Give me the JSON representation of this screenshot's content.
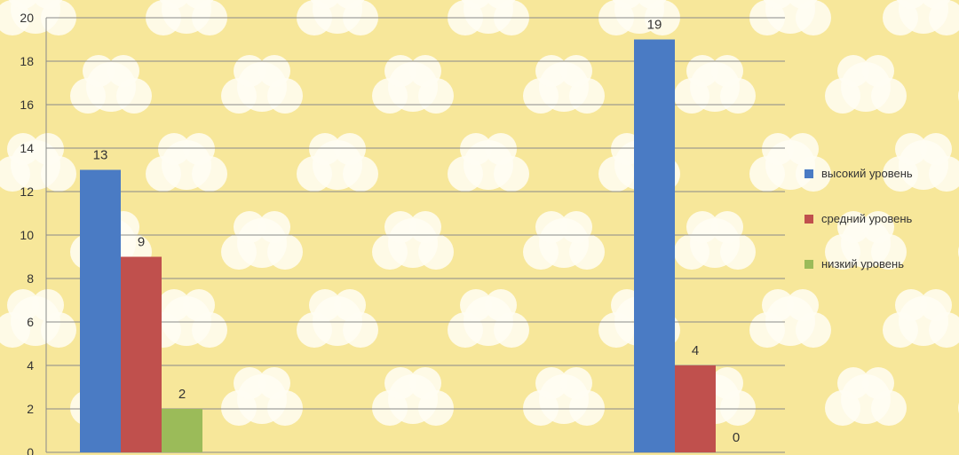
{
  "chart_data": {
    "type": "bar",
    "title": "",
    "xlabel": "",
    "ylabel": "",
    "categories": [
      "",
      ""
    ],
    "ylim": [
      0,
      20
    ],
    "yticks": [
      0,
      2,
      4,
      6,
      8,
      10,
      12,
      14,
      16,
      18,
      20
    ],
    "grid": true,
    "legend_position": "right",
    "series": [
      {
        "name": "высокий уровень",
        "color": "#4a7bc4",
        "values": [
          13,
          19
        ]
      },
      {
        "name": "средний уровень",
        "color": "#c0504d",
        "values": [
          9,
          4
        ]
      },
      {
        "name": "низкий уровень",
        "color": "#9bbb59",
        "values": [
          2,
          0
        ]
      }
    ]
  }
}
